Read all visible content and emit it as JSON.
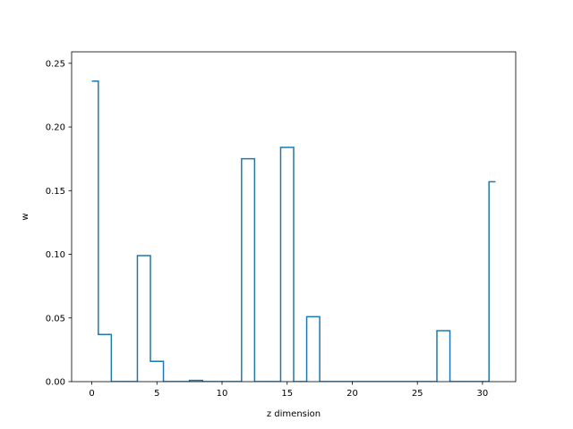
{
  "chart_data": {
    "type": "line",
    "drawstyle": "steps-mid",
    "title": "",
    "xlabel": "z dimension",
    "ylabel": "w",
    "xlim": [
      -1.55,
      32.55
    ],
    "ylim": [
      0.0,
      0.259
    ],
    "x_ticks": [
      0,
      5,
      10,
      15,
      20,
      25,
      30
    ],
    "x_tick_labels": [
      "0",
      "5",
      "10",
      "15",
      "20",
      "25",
      "30"
    ],
    "y_ticks": [
      0.0,
      0.05,
      0.1,
      0.15,
      0.2,
      0.25
    ],
    "y_tick_labels": [
      "0.00",
      "0.05",
      "0.10",
      "0.15",
      "0.20",
      "0.25"
    ],
    "grid": false,
    "legend": "none",
    "series": [
      {
        "color": "#1f77b4",
        "x": [
          0,
          1,
          2,
          3,
          4,
          5,
          6,
          7,
          8,
          9,
          10,
          11,
          12,
          13,
          14,
          15,
          16,
          17,
          18,
          19,
          20,
          21,
          22,
          23,
          24,
          25,
          26,
          27,
          28,
          29,
          30,
          31
        ],
        "y": [
          0.236,
          0.037,
          0.0,
          0.0,
          0.099,
          0.016,
          0.0,
          0.0,
          0.001,
          0.0,
          0.0,
          0.0,
          0.175,
          0.0,
          0.0,
          0.184,
          0.0,
          0.051,
          0.0,
          0.0,
          0.0,
          0.0,
          0.0,
          0.0,
          0.0,
          0.0,
          0.0,
          0.04,
          0.0,
          0.0,
          0.0,
          0.157
        ]
      }
    ]
  }
}
